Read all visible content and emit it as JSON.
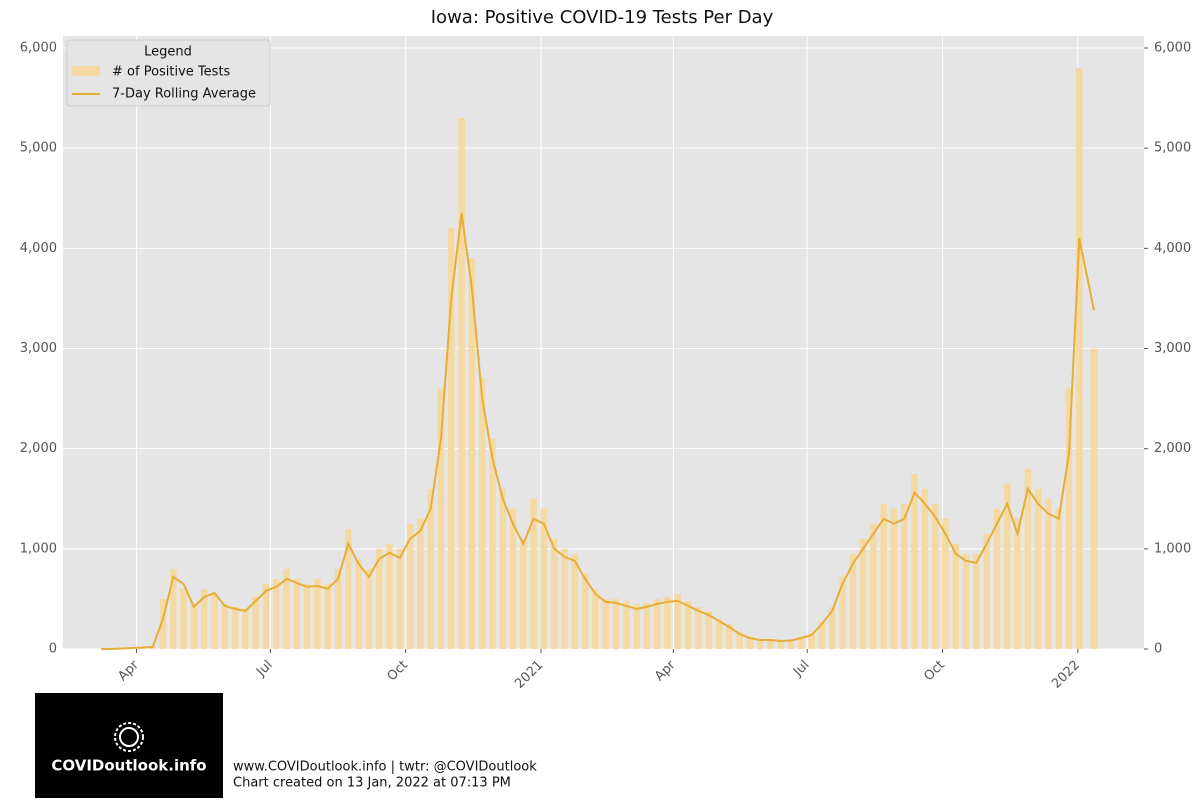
{
  "chart_data": {
    "type": "bar_line",
    "title": "Iowa: Positive COVID-19 Tests Per Day",
    "legend_title": "Legend",
    "legend": "upper left",
    "grid": true,
    "x": [
      "2020-03-08",
      "2020-03-15",
      "2020-03-22",
      "2020-03-29",
      "2020-04-05",
      "2020-04-12",
      "2020-04-19",
      "2020-04-26",
      "2020-05-03",
      "2020-05-10",
      "2020-05-17",
      "2020-05-24",
      "2020-05-31",
      "2020-06-07",
      "2020-06-14",
      "2020-06-21",
      "2020-06-28",
      "2020-07-05",
      "2020-07-12",
      "2020-07-19",
      "2020-07-26",
      "2020-08-02",
      "2020-08-09",
      "2020-08-16",
      "2020-08-23",
      "2020-08-30",
      "2020-09-06",
      "2020-09-13",
      "2020-09-20",
      "2020-09-27",
      "2020-10-04",
      "2020-10-11",
      "2020-10-18",
      "2020-10-25",
      "2020-11-01",
      "2020-11-08",
      "2020-11-15",
      "2020-11-22",
      "2020-11-29",
      "2020-12-06",
      "2020-12-13",
      "2020-12-20",
      "2020-12-27",
      "2021-01-03",
      "2021-01-10",
      "2021-01-17",
      "2021-01-24",
      "2021-01-31",
      "2021-02-07",
      "2021-02-14",
      "2021-02-21",
      "2021-02-28",
      "2021-03-07",
      "2021-03-14",
      "2021-03-21",
      "2021-03-28",
      "2021-04-04",
      "2021-04-11",
      "2021-04-18",
      "2021-04-25",
      "2021-05-02",
      "2021-05-09",
      "2021-05-16",
      "2021-05-23",
      "2021-05-30",
      "2021-06-06",
      "2021-06-13",
      "2021-06-20",
      "2021-06-27",
      "2021-07-04",
      "2021-07-11",
      "2021-07-18",
      "2021-07-25",
      "2021-08-01",
      "2021-08-08",
      "2021-08-15",
      "2021-08-22",
      "2021-08-29",
      "2021-09-05",
      "2021-09-12",
      "2021-09-19",
      "2021-09-26",
      "2021-10-03",
      "2021-10-10",
      "2021-10-17",
      "2021-10-24",
      "2021-10-31",
      "2021-11-07",
      "2021-11-14",
      "2021-11-21",
      "2021-11-28",
      "2021-12-05",
      "2021-12-12",
      "2021-12-19",
      "2021-12-26",
      "2022-01-02",
      "2022-01-12"
    ],
    "series": [
      {
        "name": "# of Positive Tests",
        "type": "bar",
        "color": "#f5d9a3",
        "values": [
          0,
          0,
          5,
          10,
          15,
          30,
          500,
          800,
          600,
          450,
          600,
          550,
          450,
          420,
          400,
          520,
          650,
          700,
          800,
          700,
          650,
          700,
          650,
          800,
          1200,
          900,
          800,
          1000,
          1050,
          1000,
          1250,
          1300,
          1600,
          2600,
          4200,
          5300,
          3900,
          2700,
          2100,
          1600,
          1400,
          1100,
          1500,
          1400,
          1100,
          1000,
          950,
          750,
          600,
          500,
          500,
          480,
          450,
          460,
          500,
          520,
          550,
          480,
          420,
          380,
          300,
          250,
          170,
          120,
          100,
          100,
          90,
          95,
          120,
          160,
          280,
          420,
          720,
          950,
          1100,
          1250,
          1450,
          1400,
          1450,
          1750,
          1600,
          1450,
          1300,
          1050,
          950,
          950,
          1150,
          1400,
          1650,
          1300,
          1800,
          1600,
          1500,
          1400,
          2600,
          5800,
          3000
        ]
      },
      {
        "name": "7-Day Rolling Average",
        "type": "line",
        "color": "#e5ae38",
        "values": [
          0,
          0,
          5,
          10,
          15,
          20,
          300,
          720,
          650,
          420,
          520,
          560,
          430,
          400,
          380,
          480,
          580,
          620,
          700,
          660,
          620,
          630,
          600,
          700,
          1050,
          850,
          720,
          900,
          960,
          910,
          1100,
          1180,
          1400,
          2100,
          3500,
          4350,
          3600,
          2500,
          1900,
          1500,
          1250,
          1050,
          1300,
          1250,
          1000,
          920,
          880,
          700,
          550,
          470,
          460,
          430,
          400,
          420,
          450,
          470,
          480,
          430,
          380,
          340,
          280,
          220,
          150,
          110,
          90,
          90,
          80,
          85,
          110,
          140,
          250,
          380,
          650,
          850,
          1000,
          1150,
          1300,
          1250,
          1300,
          1560,
          1450,
          1320,
          1150,
          950,
          880,
          860,
          1050,
          1250,
          1450,
          1150,
          1600,
          1450,
          1350,
          1300,
          1950,
          4100,
          3380
        ]
      }
    ],
    "xlim": [
      "2020-02-11",
      "2022-02-15"
    ],
    "xticks": [
      {
        "value": "2020-04-01",
        "label": "Apr"
      },
      {
        "value": "2020-07-01",
        "label": "Jul"
      },
      {
        "value": "2020-10-01",
        "label": "Oct"
      },
      {
        "value": "2021-01-01",
        "label": "2021"
      },
      {
        "value": "2021-04-01",
        "label": "Apr"
      },
      {
        "value": "2021-07-01",
        "label": "Jul"
      },
      {
        "value": "2021-10-01",
        "label": "Oct"
      },
      {
        "value": "2022-01-01",
        "label": "2022"
      }
    ],
    "ylim": [
      0,
      6120
    ],
    "yticks": [
      0,
      {
        "value": 1000,
        "label": "1,000"
      },
      {
        "value": 2000,
        "label": "2,000"
      },
      {
        "value": 3000,
        "label": "3,000"
      },
      {
        "value": 4000,
        "label": "4,000"
      },
      {
        "value": 5000,
        "label": "5,000"
      },
      {
        "value": 6000,
        "label": "6,000"
      }
    ],
    "y2lim": [
      0,
      6120
    ],
    "y2ticks": [
      0,
      {
        "value": 1000,
        "label": "1,000"
      },
      {
        "value": 2000,
        "label": "2,000"
      },
      {
        "value": 3000,
        "label": "3,000"
      },
      {
        "value": 4000,
        "label": "4,000"
      },
      {
        "value": 5000,
        "label": "5,000"
      },
      {
        "value": 6000,
        "label": "6,000"
      }
    ]
  },
  "footer": {
    "logo": "COVIDoutlook.info",
    "line1": "www.COVIDoutlook.info | twtr: @COVIDoutlook",
    "line2": "Chart created on 13 Jan, 2022 at 07:13 PM"
  }
}
